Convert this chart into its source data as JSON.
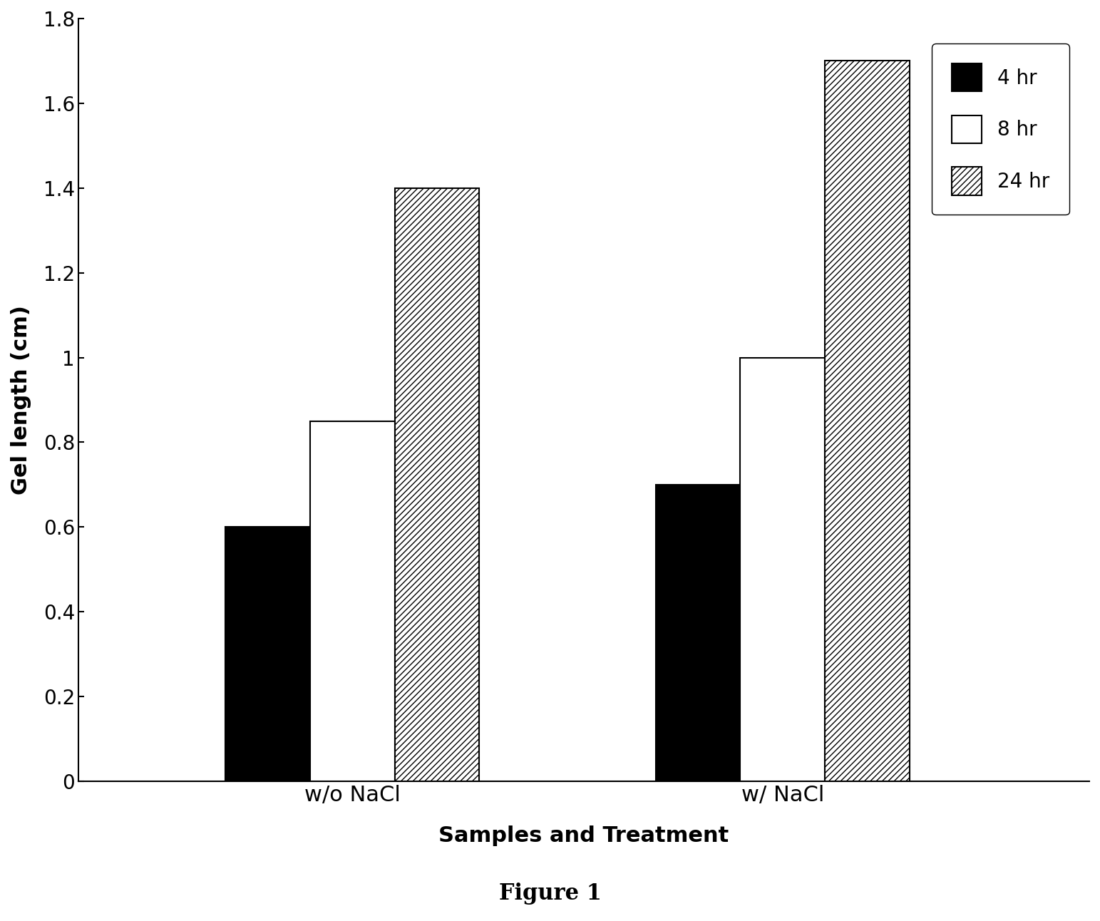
{
  "categories": [
    "w/o NaCl",
    "w/ NaCl"
  ],
  "series": {
    "4 hr": [
      0.6,
      0.7
    ],
    "8 hr": [
      0.85,
      1.0
    ],
    "24 hr": [
      1.4,
      1.7
    ]
  },
  "bar_styles": {
    "4 hr": {
      "color": "#000000",
      "hatch": null
    },
    "8 hr": {
      "color": "#ffffff",
      "hatch": null
    },
    "24 hr": {
      "color": "#ffffff",
      "hatch": "////"
    }
  },
  "legend_labels": [
    "4 hr",
    "8 hr",
    "24 hr"
  ],
  "ylabel": "Gel length (cm)",
  "xlabel": "Samples and Treatment",
  "figure_label": "Figure 1",
  "ylim": [
    0,
    1.8
  ],
  "yticks": [
    0,
    0.2,
    0.4,
    0.6,
    0.8,
    1.0,
    1.2,
    1.4,
    1.6,
    1.8
  ],
  "bar_width": 0.13,
  "ylabel_fontsize": 22,
  "xlabel_fontsize": 22,
  "tick_fontsize": 20,
  "legend_fontsize": 20,
  "figure_label_fontsize": 22,
  "background_color": "#ffffff",
  "group_centers": [
    0.42,
    1.08
  ],
  "xlim": [
    0.0,
    1.55
  ]
}
